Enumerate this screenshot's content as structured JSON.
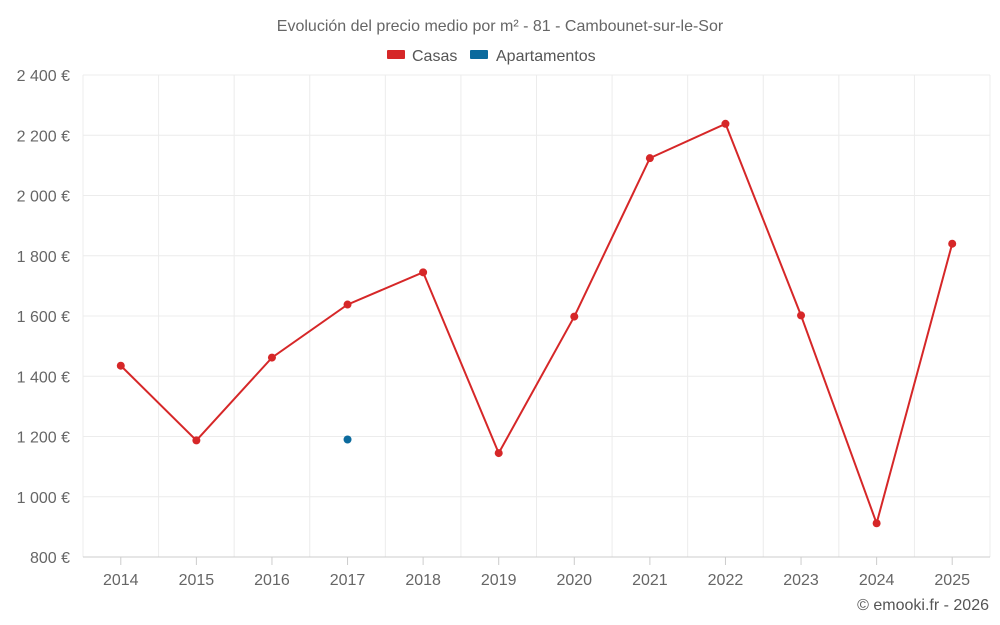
{
  "chart_data": {
    "type": "line",
    "title": "Evolución del precio medio por m² - 81 - Cambounet-sur-le-Sor",
    "categories": [
      "2014",
      "2015",
      "2016",
      "2017",
      "2018",
      "2019",
      "2020",
      "2021",
      "2022",
      "2023",
      "2024",
      "2025"
    ],
    "series": [
      {
        "name": "Casas",
        "color": "#d62728",
        "values": [
          1435,
          1187,
          1462,
          1638,
          1745,
          1145,
          1598,
          2124,
          2238,
          1602,
          912,
          1840
        ]
      },
      {
        "name": "Apartamentos",
        "color": "#0b6a9d",
        "values": [
          null,
          null,
          null,
          1190,
          null,
          null,
          null,
          null,
          null,
          null,
          null,
          null
        ]
      }
    ],
    "yticks": [
      "800 €",
      "1 000 €",
      "1 200 €",
      "1 400 €",
      "1 600 €",
      "1 800 €",
      "2 000 €",
      "2 200 €",
      "2 400 €"
    ],
    "ylim": [
      800,
      2400
    ],
    "xlabel": "",
    "ylabel": "",
    "grid": true,
    "legend_position": "top-center"
  },
  "credit": "© emooki.fr - 2026"
}
